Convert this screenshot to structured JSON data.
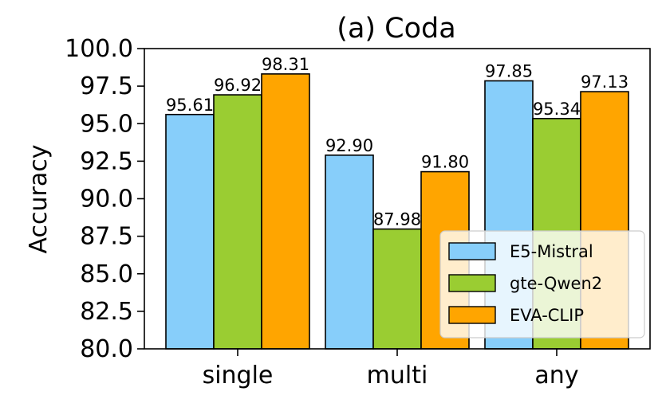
{
  "chart_data": {
    "type": "bar",
    "title": "(a) Coda",
    "xlabel": "",
    "ylabel": "Accuracy",
    "ylim": [
      80.0,
      100.0
    ],
    "yticks": [
      "80.0",
      "82.5",
      "85.0",
      "87.5",
      "90.0",
      "92.5",
      "95.0",
      "97.5",
      "100.0"
    ],
    "categories": [
      "single",
      "multi",
      "any"
    ],
    "series": [
      {
        "name": "E5-Mistral",
        "color": "#87cefa",
        "values": [
          95.61,
          92.9,
          97.85
        ],
        "labels": [
          "95.61",
          "92.90",
          "97.85"
        ]
      },
      {
        "name": "gte-Qwen2",
        "color": "#9acd32",
        "values": [
          96.92,
          87.98,
          95.34
        ],
        "labels": [
          "96.92",
          "87.98",
          "95.34"
        ]
      },
      {
        "name": "EVA-CLIP",
        "color": "#ffa500",
        "values": [
          98.31,
          91.8,
          97.13
        ],
        "labels": [
          "98.31",
          "91.80",
          "97.13"
        ]
      }
    ],
    "legend_position": "lower-right",
    "grid": false
  }
}
